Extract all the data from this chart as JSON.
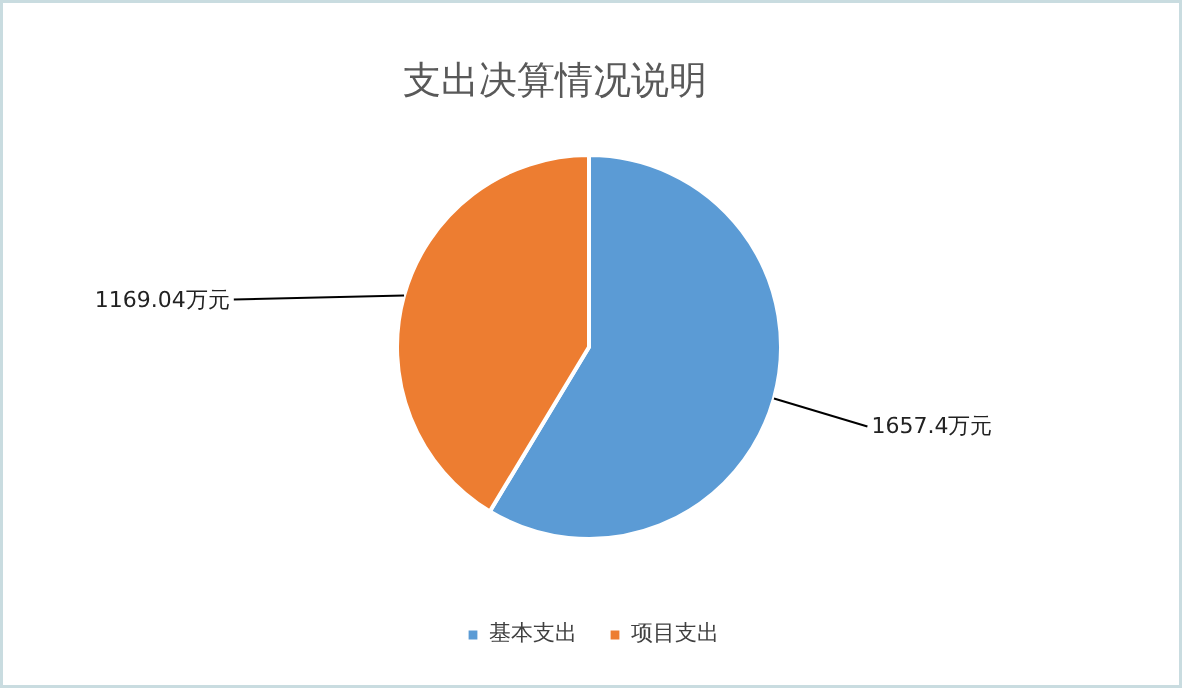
{
  "chart_data": {
    "type": "pie",
    "title": "支出决算情况说明",
    "categories": [
      "基本支出",
      "项目支出"
    ],
    "values": [
      1657.4,
      1169.04
    ],
    "colors": [
      "#5b9bd5",
      "#ed7d31"
    ],
    "value_labels": [
      "1657.4万元",
      "1169.04万元"
    ],
    "legend": "bottom"
  }
}
